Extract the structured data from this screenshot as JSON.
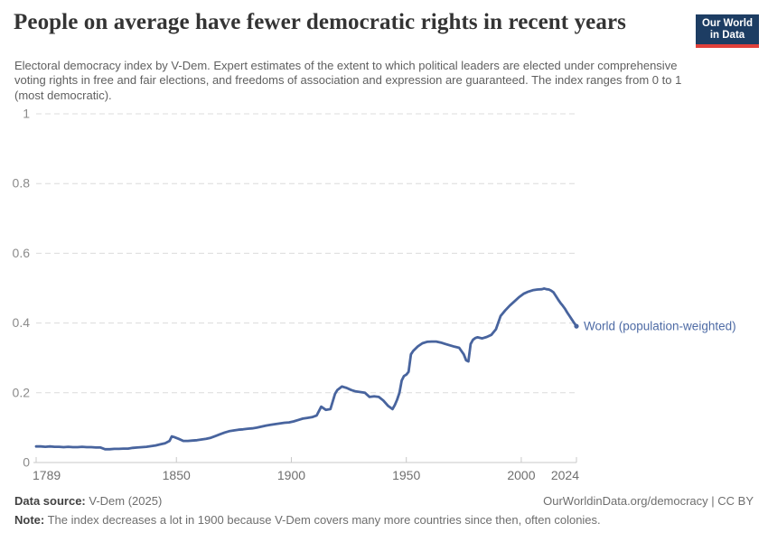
{
  "header": {
    "logo": {
      "line1": "Our World",
      "line2": "in Data",
      "bg_color": "#1d3d63",
      "accent_color": "#e0403a"
    }
  },
  "chart_data": {
    "type": "line",
    "title": "People on average have fewer democratic rights in recent years",
    "subtitle": "Electoral democracy index by V-Dem. Expert estimates of the extent to which political leaders are elected under comprehensive voting rights in free and fair elections, and freedoms of association and expression are guaranteed. The index ranges from 0 to 1 (most democratic).",
    "xlabel": "",
    "ylabel": "",
    "xlim": [
      1789,
      2024
    ],
    "ylim": [
      0,
      1
    ],
    "xticks": [
      1789,
      1850,
      1900,
      1950,
      2000,
      2024
    ],
    "yticks": [
      0,
      0.2,
      0.4,
      0.6,
      0.8,
      1
    ],
    "grid": "horizontal-dashed",
    "grid_color": "#dcdcdc",
    "axis_color": "#c8c8c8",
    "ytick_label_color": "#8b8b8b",
    "xtick_label_color": "#6f6f6f",
    "legend_position": "end-of-line",
    "series": [
      {
        "name": "World (population-weighted)",
        "color": "#48649E",
        "label_color": "#4e6ba5",
        "points": [
          [
            1789,
            0.046
          ],
          [
            1791,
            0.046
          ],
          [
            1793,
            0.045
          ],
          [
            1795,
            0.046
          ],
          [
            1797,
            0.045
          ],
          [
            1799,
            0.045
          ],
          [
            1801,
            0.044
          ],
          [
            1803,
            0.045
          ],
          [
            1805,
            0.044
          ],
          [
            1807,
            0.044
          ],
          [
            1809,
            0.045
          ],
          [
            1811,
            0.044
          ],
          [
            1813,
            0.044
          ],
          [
            1815,
            0.043
          ],
          [
            1817,
            0.043
          ],
          [
            1819,
            0.038
          ],
          [
            1821,
            0.038
          ],
          [
            1823,
            0.039
          ],
          [
            1825,
            0.039
          ],
          [
            1827,
            0.04
          ],
          [
            1829,
            0.04
          ],
          [
            1831,
            0.042
          ],
          [
            1833,
            0.043
          ],
          [
            1835,
            0.044
          ],
          [
            1837,
            0.045
          ],
          [
            1839,
            0.047
          ],
          [
            1841,
            0.049
          ],
          [
            1843,
            0.052
          ],
          [
            1845,
            0.055
          ],
          [
            1847,
            0.062
          ],
          [
            1848,
            0.075
          ],
          [
            1849,
            0.073
          ],
          [
            1851,
            0.068
          ],
          [
            1853,
            0.062
          ],
          [
            1855,
            0.062
          ],
          [
            1857,
            0.063
          ],
          [
            1859,
            0.064
          ],
          [
            1861,
            0.066
          ],
          [
            1863,
            0.068
          ],
          [
            1865,
            0.071
          ],
          [
            1867,
            0.076
          ],
          [
            1869,
            0.081
          ],
          [
            1871,
            0.086
          ],
          [
            1873,
            0.09
          ],
          [
            1875,
            0.092
          ],
          [
            1877,
            0.094
          ],
          [
            1879,
            0.095
          ],
          [
            1881,
            0.097
          ],
          [
            1883,
            0.098
          ],
          [
            1885,
            0.1
          ],
          [
            1887,
            0.103
          ],
          [
            1889,
            0.106
          ],
          [
            1891,
            0.108
          ],
          [
            1893,
            0.11
          ],
          [
            1895,
            0.112
          ],
          [
            1897,
            0.114
          ],
          [
            1899,
            0.115
          ],
          [
            1901,
            0.118
          ],
          [
            1903,
            0.122
          ],
          [
            1905,
            0.126
          ],
          [
            1907,
            0.128
          ],
          [
            1909,
            0.13
          ],
          [
            1911,
            0.135
          ],
          [
            1913,
            0.16
          ],
          [
            1915,
            0.151
          ],
          [
            1917,
            0.153
          ],
          [
            1919,
            0.197
          ],
          [
            1920,
            0.208
          ],
          [
            1922,
            0.218
          ],
          [
            1924,
            0.214
          ],
          [
            1926,
            0.208
          ],
          [
            1928,
            0.204
          ],
          [
            1930,
            0.202
          ],
          [
            1932,
            0.2
          ],
          [
            1934,
            0.188
          ],
          [
            1936,
            0.19
          ],
          [
            1938,
            0.188
          ],
          [
            1940,
            0.178
          ],
          [
            1942,
            0.163
          ],
          [
            1944,
            0.153
          ],
          [
            1945,
            0.165
          ],
          [
            1946,
            0.18
          ],
          [
            1947,
            0.2
          ],
          [
            1948,
            0.235
          ],
          [
            1949,
            0.248
          ],
          [
            1950,
            0.252
          ],
          [
            1951,
            0.26
          ],
          [
            1952,
            0.31
          ],
          [
            1953,
            0.32
          ],
          [
            1955,
            0.333
          ],
          [
            1957,
            0.342
          ],
          [
            1959,
            0.346
          ],
          [
            1961,
            0.347
          ],
          [
            1963,
            0.347
          ],
          [
            1965,
            0.344
          ],
          [
            1967,
            0.34
          ],
          [
            1969,
            0.336
          ],
          [
            1971,
            0.332
          ],
          [
            1973,
            0.329
          ],
          [
            1975,
            0.31
          ],
          [
            1976,
            0.293
          ],
          [
            1977,
            0.29
          ],
          [
            1978,
            0.34
          ],
          [
            1979,
            0.352
          ],
          [
            1980,
            0.357
          ],
          [
            1981,
            0.359
          ],
          [
            1983,
            0.356
          ],
          [
            1985,
            0.36
          ],
          [
            1987,
            0.366
          ],
          [
            1989,
            0.382
          ],
          [
            1991,
            0.42
          ],
          [
            1993,
            0.436
          ],
          [
            1995,
            0.45
          ],
          [
            1997,
            0.462
          ],
          [
            1999,
            0.474
          ],
          [
            2001,
            0.484
          ],
          [
            2003,
            0.49
          ],
          [
            2005,
            0.494
          ],
          [
            2007,
            0.496
          ],
          [
            2009,
            0.497
          ],
          [
            2010,
            0.499
          ],
          [
            2011,
            0.497
          ],
          [
            2012,
            0.496
          ],
          [
            2013,
            0.493
          ],
          [
            2014,
            0.488
          ],
          [
            2015,
            0.478
          ],
          [
            2016,
            0.468
          ],
          [
            2017,
            0.458
          ],
          [
            2018,
            0.45
          ],
          [
            2019,
            0.441
          ],
          [
            2020,
            0.43
          ],
          [
            2021,
            0.42
          ],
          [
            2022,
            0.41
          ],
          [
            2023,
            0.4
          ],
          [
            2024,
            0.391
          ]
        ]
      }
    ]
  },
  "footer": {
    "datasource_label": "Data source:",
    "datasource_value": " V-Dem (2025)",
    "attribution": "OurWorldinData.org/democracy | CC BY",
    "note_label": "Note:",
    "note_text": " The index decreases a lot in 1900 because V-Dem covers many more countries since then, often colonies."
  }
}
